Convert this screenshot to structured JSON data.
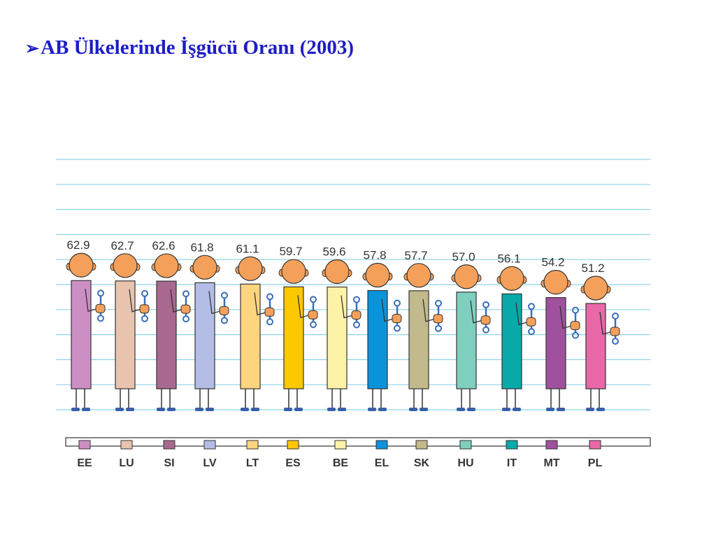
{
  "page": {
    "title_marker": "➢",
    "title": "AB Ülkelerinde İşgücü Oranı (2003)"
  },
  "colors": {
    "title": "#1d1dc7",
    "gridline": "#8fd3e6",
    "skin": "#f5a05a",
    "outline": "#333333",
    "legs": "#3a5fa8"
  },
  "icons": {
    "figure": "person-icon",
    "tool": "wrench-icon"
  },
  "chart_data": {
    "type": "bar",
    "title": "AB Ülkelerinde İşgücü Oranı (2003)",
    "xlabel": "",
    "ylabel": "",
    "grid": true,
    "categories": [
      "EE",
      "LU",
      "SI",
      "LV",
      "LT",
      "ES",
      "BE",
      "EL",
      "SK",
      "HU",
      "IT",
      "MT",
      "PL"
    ],
    "values": [
      62.9,
      62.7,
      62.6,
      61.8,
      61.1,
      59.7,
      59.6,
      57.8,
      57.7,
      57.0,
      56.1,
      54.2,
      51.2
    ],
    "value_labels": [
      "62.9",
      "62.7",
      "62.6",
      "61.8",
      "61.1",
      "59.7",
      "59.6",
      "57.8",
      "57.7",
      "57.0",
      "56.1",
      "54.2",
      "51.2"
    ],
    "bar_colors": [
      "#cc8fc4",
      "#e8c4ae",
      "#a9688f",
      "#b4bde6",
      "#fdd57e",
      "#fcc800",
      "#fdf3a8",
      "#0a93db",
      "#c2b98c",
      "#7fcfbf",
      "#08a9a9",
      "#a0519e",
      "#e868a8"
    ],
    "legend_position": "bottom"
  }
}
